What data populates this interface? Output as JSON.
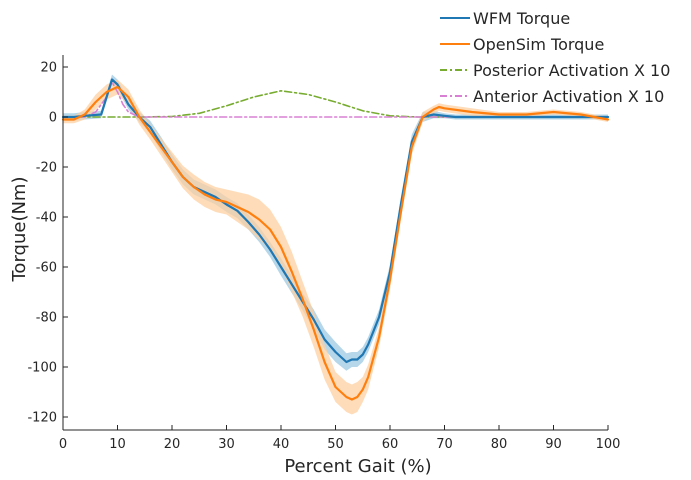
{
  "chart_data": {
    "type": "line",
    "title": "",
    "xlabel": "Percent Gait (%)",
    "ylabel": "Torque(Nm)",
    "xlim": [
      0,
      100
    ],
    "ylim": [
      -125,
      25
    ],
    "xticks": [
      0,
      10,
      20,
      30,
      40,
      50,
      60,
      70,
      80,
      90,
      100
    ],
    "yticks": [
      20,
      0,
      -20,
      -40,
      -60,
      -80,
      -100,
      -120
    ],
    "grid": false,
    "legend_position": "top-right",
    "series": [
      {
        "name": "WFM Torque",
        "color": "#1f77b4",
        "style": "solid",
        "band_color": "#9ecae1",
        "x": [
          0,
          2,
          4,
          7,
          9,
          10,
          12,
          14,
          16,
          18,
          20,
          22,
          24,
          26,
          28,
          30,
          32,
          34,
          36,
          38,
          40,
          42,
          44,
          46,
          48,
          50,
          52,
          53,
          54,
          55,
          56,
          58,
          60,
          62,
          64,
          66,
          68,
          70,
          72,
          75,
          80,
          85,
          90,
          95,
          100
        ],
        "values": [
          0,
          0,
          0.5,
          1,
          15,
          13,
          5,
          0,
          -4,
          -11,
          -18,
          -24,
          -28,
          -30,
          -32,
          -35,
          -37.5,
          -42,
          -47,
          -53,
          -60,
          -67,
          -74,
          -81,
          -89,
          -94,
          -98,
          -97,
          -97,
          -95,
          -91,
          -80,
          -62,
          -35,
          -10,
          0,
          1,
          0.5,
          0,
          0,
          0,
          0,
          0,
          0,
          0
        ],
        "band": [
          1.5,
          1.5,
          1.5,
          1.5,
          2,
          2,
          2,
          2,
          2.5,
          3,
          3,
          3,
          3,
          3,
          3,
          3,
          3,
          3,
          3,
          3,
          3.5,
          3.5,
          3.5,
          4,
          4,
          4,
          3.5,
          3,
          3,
          3,
          3,
          3,
          3,
          3,
          3,
          2,
          1.5,
          1,
          1,
          1,
          1,
          1,
          1,
          1,
          1
        ]
      },
      {
        "name": "OpenSim Torque",
        "color": "#ff7f0e",
        "style": "solid",
        "band_color": "#fdd0a2",
        "x": [
          0,
          2,
          4,
          6,
          8,
          10,
          12,
          14,
          16,
          18,
          20,
          22,
          24,
          26,
          28,
          30,
          32,
          34,
          36,
          38,
          40,
          42,
          44,
          46,
          48,
          50,
          52,
          53,
          54,
          55,
          56,
          58,
          60,
          62,
          64,
          66,
          68,
          69,
          70,
          75,
          80,
          85,
          90,
          95,
          100
        ],
        "values": [
          -1,
          -1,
          1,
          6,
          10,
          12,
          8,
          0,
          -6,
          -12,
          -18,
          -24,
          -28,
          -31,
          -33,
          -34,
          -36,
          -38,
          -41,
          -45,
          -52,
          -62,
          -73,
          -85,
          -98,
          -108,
          -112,
          -113,
          -112,
          -109,
          -104,
          -88,
          -65,
          -38,
          -12,
          0,
          3,
          4,
          3.5,
          2,
          1,
          1,
          2,
          1,
          -1
        ],
        "band": [
          1.5,
          1.5,
          2,
          3,
          3,
          3,
          3,
          3,
          3,
          3.5,
          4,
          4.5,
          5,
          5,
          5,
          5,
          6,
          7,
          8,
          8,
          8,
          8,
          7,
          7,
          7,
          6,
          6,
          6,
          6,
          5,
          5,
          4,
          4,
          3,
          3,
          2,
          1.5,
          1.5,
          1.5,
          1.5,
          1,
          1,
          1,
          1,
          1
        ]
      },
      {
        "name": "Posterior Activation X 10",
        "color": "#77ac30",
        "style": "dashdot",
        "x": [
          0,
          10,
          15,
          20,
          25,
          30,
          35,
          40,
          45,
          50,
          55,
          60,
          65,
          70,
          80,
          90,
          100
        ],
        "values": [
          0,
          0,
          0,
          0.2,
          1.5,
          4.5,
          8,
          10.5,
          9,
          6,
          2.5,
          0.5,
          0,
          0,
          0,
          0,
          0
        ]
      },
      {
        "name": "Anterior Activation X 10",
        "color": "#d980d4",
        "style": "dashdot",
        "x": [
          0,
          4,
          6,
          8,
          9,
          10,
          11,
          12,
          14,
          20,
          40,
          60,
          80,
          100
        ],
        "values": [
          0,
          0,
          2,
          8,
          14,
          10,
          5,
          2,
          0,
          0,
          0,
          0,
          0,
          0
        ]
      }
    ]
  }
}
